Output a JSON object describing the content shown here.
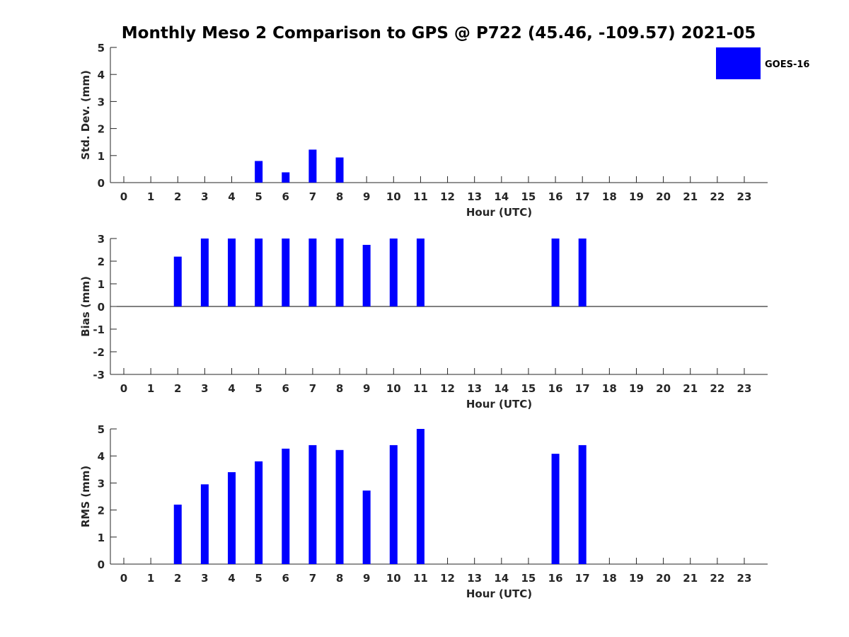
{
  "title": "Monthly Meso 2 Comparison to GPS @ P722 (45.46, -109.57) 2021-05",
  "legend": {
    "entries": [
      {
        "label": "GOES-16",
        "color": "#0000ff"
      }
    ],
    "placement": "top-right"
  },
  "chart_data": [
    {
      "type": "bar",
      "xlabel": "Hour (UTC)",
      "ylabel": "Std. Dev. (mm)",
      "categories": [
        "0",
        "1",
        "2",
        "3",
        "4",
        "5",
        "6",
        "7",
        "8",
        "9",
        "10",
        "11",
        "12",
        "13",
        "14",
        "15",
        "16",
        "17",
        "18",
        "19",
        "20",
        "21",
        "22",
        "23"
      ],
      "yticks": [
        "0",
        "1",
        "2",
        "3",
        "4",
        "5"
      ],
      "ylim": [
        0,
        5
      ],
      "grid": false,
      "series": [
        {
          "name": "GOES-16",
          "color": "#0000ff",
          "values": [
            null,
            null,
            0,
            null,
            null,
            0.8,
            0.38,
            1.22,
            0.93,
            null,
            0,
            0,
            null,
            null,
            null,
            null,
            0,
            0,
            null,
            null,
            null,
            null,
            null,
            null
          ]
        }
      ]
    },
    {
      "type": "bar",
      "xlabel": "Hour (UTC)",
      "ylabel": "Bias (mm)",
      "categories": [
        "0",
        "1",
        "2",
        "3",
        "4",
        "5",
        "6",
        "7",
        "8",
        "9",
        "10",
        "11",
        "12",
        "13",
        "14",
        "15",
        "16",
        "17",
        "18",
        "19",
        "20",
        "21",
        "22",
        "23"
      ],
      "yticks": [
        "-3",
        "-2",
        "-1",
        "0",
        "1",
        "2",
        "3"
      ],
      "ylim": [
        -3,
        3
      ],
      "grid": false,
      "series": [
        {
          "name": "GOES-16",
          "color": "#0000ff",
          "values": [
            null,
            null,
            2.2,
            3,
            3,
            3,
            3,
            3,
            3,
            2.72,
            3,
            3,
            null,
            null,
            null,
            null,
            3,
            3,
            null,
            null,
            null,
            null,
            null,
            null
          ]
        }
      ]
    },
    {
      "type": "bar",
      "xlabel": "Hour (UTC)",
      "ylabel": "RMS (mm)",
      "categories": [
        "0",
        "1",
        "2",
        "3",
        "4",
        "5",
        "6",
        "7",
        "8",
        "9",
        "10",
        "11",
        "12",
        "13",
        "14",
        "15",
        "16",
        "17",
        "18",
        "19",
        "20",
        "21",
        "22",
        "23"
      ],
      "yticks": [
        "0",
        "1",
        "2",
        "3",
        "4",
        "5"
      ],
      "ylim": [
        0,
        5
      ],
      "grid": false,
      "series": [
        {
          "name": "GOES-16",
          "color": "#0000ff",
          "values": [
            null,
            null,
            2.2,
            2.95,
            3.4,
            3.8,
            4.27,
            4.4,
            4.22,
            2.72,
            4.4,
            5,
            null,
            null,
            null,
            null,
            4.08,
            4.4,
            null,
            null,
            null,
            null,
            null,
            null
          ]
        }
      ]
    }
  ]
}
